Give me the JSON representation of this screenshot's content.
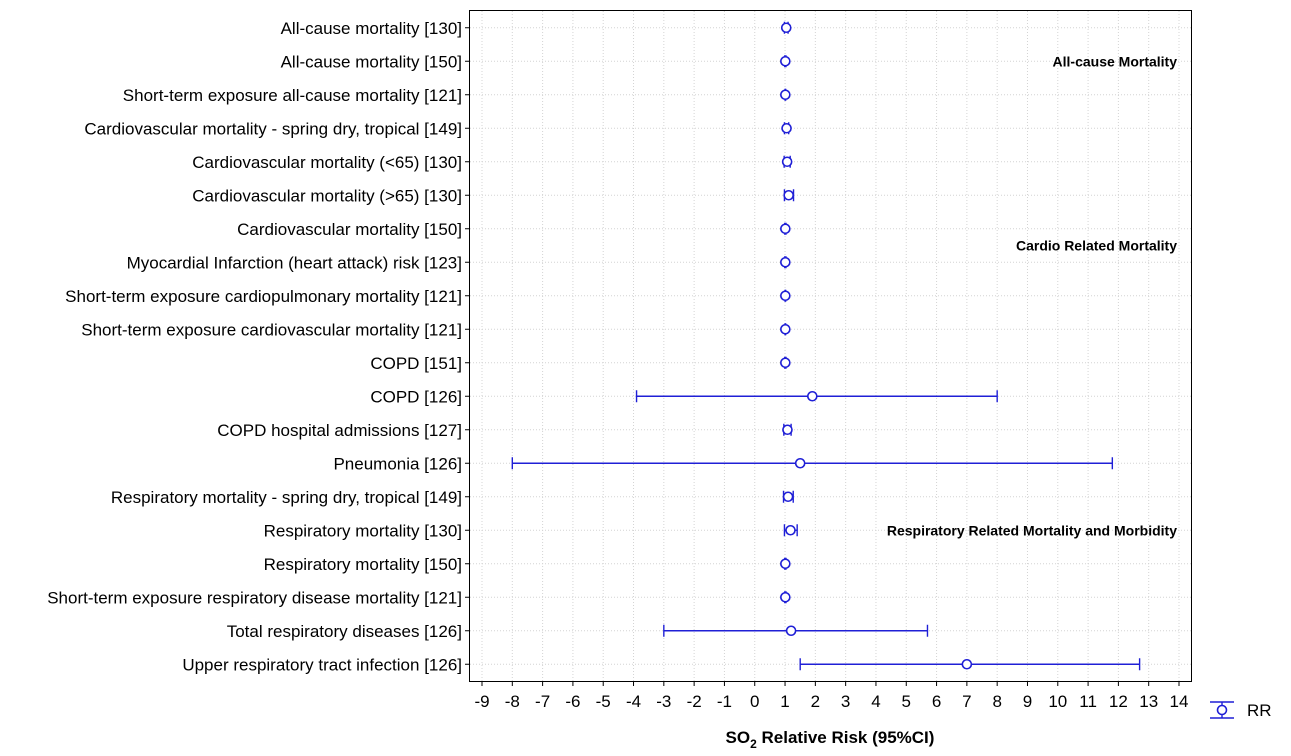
{
  "chart_data": {
    "type": "forest",
    "xlabel": "SO2 Relative Risk (95%CI)",
    "xlabel_main": "SO",
    "xlabel_sub": "2",
    "xlabel_rest": " Relative Risk (95%CI)",
    "xlim": [
      -9,
      14
    ],
    "xticks": [
      "-9",
      "-8",
      "-7",
      "-6",
      "-5",
      "-4",
      "-3",
      "-2",
      "-1",
      "0",
      "1",
      "2",
      "3",
      "4",
      "5",
      "6",
      "7",
      "8",
      "9",
      "10",
      "11",
      "12",
      "13",
      "14"
    ],
    "grid": true,
    "legend": {
      "label": "RR",
      "position": "bottom-right"
    },
    "series_color": "#1f1fd6",
    "groups": [
      {
        "label": "All-cause Mortality",
        "row": 1
      },
      {
        "label": "Cardio Related Mortality",
        "row": 6.5
      },
      {
        "label": "Respiratory Related Mortality and Morbidity",
        "row": 15
      }
    ],
    "rows": [
      {
        "label": "All-cause mortality [130]",
        "rr": 1.04,
        "lo": 0.98,
        "hi": 1.1
      },
      {
        "label": "All-cause mortality [150]",
        "rr": 1.01,
        "lo": 0.99,
        "hi": 1.03
      },
      {
        "label": "Short-term exposure all-cause mortality [121]",
        "rr": 1.01,
        "lo": 1.0,
        "hi": 1.02
      },
      {
        "label": "Cardiovascular mortality - spring dry, tropical [149]",
        "rr": 1.05,
        "lo": 0.98,
        "hi": 1.12
      },
      {
        "label": "Cardiovascular mortality (<65) [130]",
        "rr": 1.07,
        "lo": 0.97,
        "hi": 1.17
      },
      {
        "label": "Cardiovascular mortality (>65) [130]",
        "rr": 1.12,
        "lo": 0.98,
        "hi": 1.28
      },
      {
        "label": "Cardiovascular mortality [150]",
        "rr": 1.01,
        "lo": 0.99,
        "hi": 1.03
      },
      {
        "label": "Myocardial Infarction (heart attack) risk [123]",
        "rr": 1.01,
        "lo": 0.99,
        "hi": 1.03
      },
      {
        "label": "Short-term exposure cardiopulmonary mortality [121]",
        "rr": 1.01,
        "lo": 1.0,
        "hi": 1.02
      },
      {
        "label": "Short-term exposure cardiovascular mortality [121]",
        "rr": 1.01,
        "lo": 1.0,
        "hi": 1.02
      },
      {
        "label": "COPD [151]",
        "rr": 1.01,
        "lo": 0.99,
        "hi": 1.03
      },
      {
        "label": "COPD [126]",
        "rr": 1.9,
        "lo": -3.9,
        "hi": 8.0
      },
      {
        "label": "COPD hospital admissions [127]",
        "rr": 1.08,
        "lo": 0.96,
        "hi": 1.2
      },
      {
        "label": "Pneumonia [126]",
        "rr": 1.5,
        "lo": -8.0,
        "hi": 11.8
      },
      {
        "label": "Respiratory mortality - spring dry, tropical [149]",
        "rr": 1.1,
        "lo": 0.95,
        "hi": 1.27
      },
      {
        "label": "Respiratory mortality [130]",
        "rr": 1.18,
        "lo": 0.98,
        "hi": 1.4
      },
      {
        "label": "Respiratory mortality [150]",
        "rr": 1.01,
        "lo": 0.99,
        "hi": 1.03
      },
      {
        "label": "Short-term exposure respiratory disease mortality [121]",
        "rr": 1.01,
        "lo": 0.99,
        "hi": 1.03
      },
      {
        "label": "Total respiratory diseases [126]",
        "rr": 1.2,
        "lo": -3.0,
        "hi": 5.7
      },
      {
        "label": "Upper respiratory tract infection [126]",
        "rr": 7.0,
        "lo": 1.5,
        "hi": 12.7
      }
    ]
  }
}
